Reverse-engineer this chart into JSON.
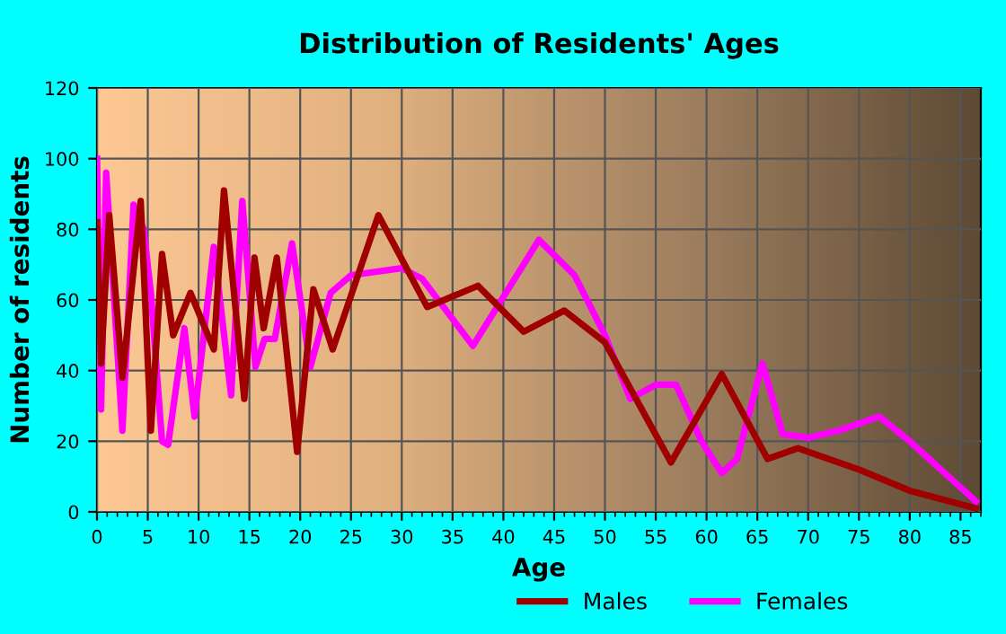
{
  "chart_data": {
    "type": "line",
    "title": "Distribution of Residents' Ages",
    "xlabel": "Age",
    "ylabel": "Number of residents",
    "xlim": [
      0,
      87
    ],
    "ylim": [
      0,
      120
    ],
    "xticks": [
      0,
      5,
      10,
      15,
      20,
      25,
      30,
      35,
      40,
      45,
      50,
      55,
      60,
      65,
      70,
      75,
      80,
      85
    ],
    "yticks": [
      0,
      20,
      40,
      60,
      80,
      100,
      120
    ],
    "grid": true,
    "legend": "bottom",
    "marker": "none",
    "line_style": "solid",
    "series": [
      {
        "name": "Males",
        "color": "#a00000",
        "x": [
          0,
          0.4,
          1.2,
          2.5,
          4.3,
          5.3,
          6.4,
          7.5,
          9.2,
          11.5,
          12.5,
          14.5,
          15.5,
          16.4,
          17.7,
          19.7,
          21.3,
          23.2,
          27.7,
          32.5,
          37.5,
          42,
          46,
          50,
          56.5,
          61.5,
          66,
          69,
          75,
          80,
          86.5
        ],
        "values": [
          82,
          42,
          84,
          38,
          88,
          23,
          73,
          50,
          62,
          46,
          91,
          32,
          72,
          52,
          72,
          17,
          63,
          46,
          84,
          58,
          64,
          51,
          57,
          48,
          14,
          39,
          15,
          18,
          12,
          6,
          1
        ]
      },
      {
        "name": "Females",
        "color": "#ff00ff",
        "x": [
          0,
          0.4,
          0.9,
          2.5,
          3.6,
          4.6,
          5.3,
          6.4,
          7,
          8.6,
          9.6,
          11.5,
          13.2,
          14.3,
          15.6,
          16.5,
          17.5,
          19.2,
          21,
          23,
          25,
          30,
          32,
          37,
          43.5,
          47,
          50,
          52.5,
          55,
          57,
          59.5,
          61.5,
          63,
          65.5,
          67.5,
          70,
          73,
          77,
          80,
          86.5
        ],
        "values": [
          100,
          29,
          96,
          23,
          87,
          80,
          62,
          20,
          19,
          52,
          27,
          75,
          33,
          88,
          41,
          49,
          49,
          76,
          41,
          62,
          67,
          69,
          66,
          47,
          77,
          67,
          50,
          32,
          36,
          36,
          20,
          11,
          15,
          42,
          22,
          21,
          23,
          27,
          20,
          3
        ]
      }
    ]
  }
}
